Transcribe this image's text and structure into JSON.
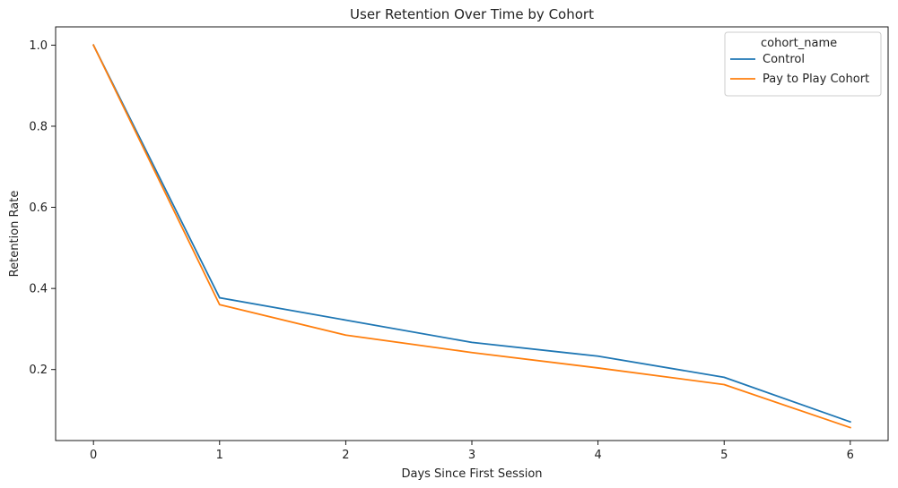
{
  "chart_data": {
    "type": "line",
    "title": "User Retention Over Time by Cohort",
    "xlabel": "Days Since First Session",
    "ylabel": "Retention Rate",
    "x": [
      0,
      1,
      2,
      3,
      4,
      5,
      6
    ],
    "xlim": [
      -0.3,
      6.3
    ],
    "ylim": [
      0.025,
      1.045
    ],
    "x_ticks": [
      0,
      1,
      2,
      3,
      4,
      5,
      6
    ],
    "y_ticks": [
      0.2,
      0.4,
      0.6,
      0.8,
      1.0
    ],
    "y_tick_labels": [
      "0.2",
      "0.4",
      "0.6",
      "0.8",
      "1.0"
    ],
    "grid": false,
    "legend": {
      "title": "cohort_name",
      "placement": "top-right"
    },
    "series": [
      {
        "name": "Control",
        "color": "#1f77b4",
        "values": [
          1.0,
          0.377,
          0.322,
          0.267,
          0.233,
          0.181,
          0.071
        ]
      },
      {
        "name": "Pay to Play Cohort",
        "color": "#ff7f0e",
        "values": [
          1.0,
          0.36,
          0.285,
          0.242,
          0.204,
          0.163,
          0.057
        ]
      }
    ]
  }
}
